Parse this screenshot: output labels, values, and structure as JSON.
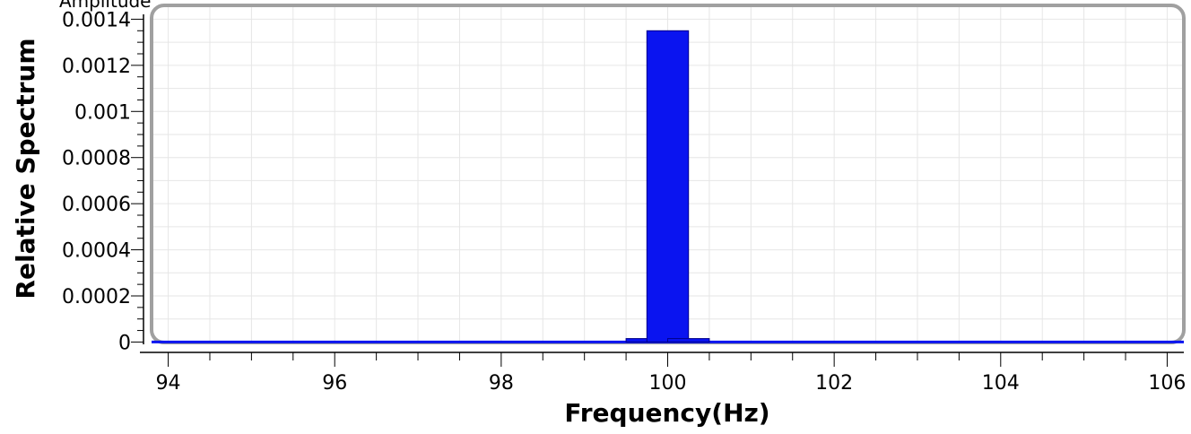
{
  "header": {
    "partial_label": "Amplitude"
  },
  "chart_data": {
    "type": "bar",
    "title": "",
    "xlabel": "Frequency(Hz)",
    "ylabel": "Relative Spectrum",
    "xlim": [
      93.8,
      106.2
    ],
    "ylim": [
      -1e-05,
      0.00146
    ],
    "x_ticks": [
      94,
      96,
      98,
      100,
      102,
      104,
      106
    ],
    "x_tick_labels": [
      "94",
      "96",
      "98",
      "100",
      "102",
      "104",
      "106"
    ],
    "y_ticks": [
      0,
      0.0002,
      0.0004,
      0.0006,
      0.0008,
      0.001,
      0.0012,
      0.0014
    ],
    "y_tick_labels": [
      "0",
      "0.0002",
      "0.0004",
      "0.0006",
      "0.0008",
      "0.001",
      "0.0012",
      "0.0014"
    ],
    "grid": true,
    "bar_width": 0.5,
    "bars": [
      {
        "x": 99.75,
        "value": 1.5e-05
      },
      {
        "x": 100.0,
        "value": 0.00135
      },
      {
        "x": 100.25,
        "value": 1.5e-05
      }
    ],
    "baseline": {
      "from": 93.8,
      "to": 106.2,
      "value": 0
    },
    "colors": {
      "bar": "#0a14f0",
      "bar_edge": "#00008b",
      "grid": "#e6e6e6",
      "frame": "#a0a0a0"
    }
  }
}
